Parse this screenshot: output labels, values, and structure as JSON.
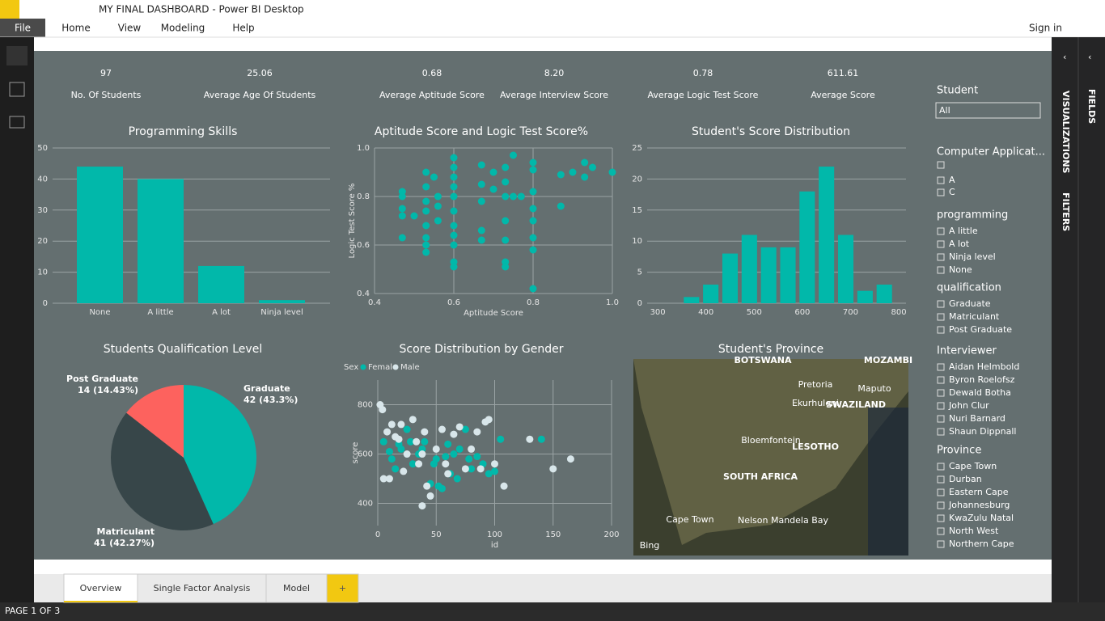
{
  "window": {
    "title": "MY FINAL DASHBOARD - Power BI Desktop",
    "menu": [
      "File",
      "Home",
      "View",
      "Modeling",
      "Help"
    ],
    "sign_in": "Sign in"
  },
  "kpis": [
    {
      "value": "97",
      "label": "No. Of Students"
    },
    {
      "value": "25.06",
      "label": "Average Age Of Students"
    },
    {
      "value": "0.68",
      "label": "Average Aptitude Score"
    },
    {
      "value": "8.20",
      "label": "Average Interview Score"
    },
    {
      "value": "0.78",
      "label": "Average Logic Test Score"
    },
    {
      "value": "611.61",
      "label": "Average Score"
    }
  ],
  "chart_data": [
    {
      "type": "bar",
      "title": "Programming Skills",
      "categories": [
        "None",
        "A little",
        "A lot",
        "Ninja level"
      ],
      "values": [
        44,
        40,
        12,
        1
      ],
      "color": "#01b8aa",
      "ylim": [
        0,
        50
      ],
      "yticks": [
        0,
        10,
        20,
        30,
        40,
        50
      ],
      "grid": true
    },
    {
      "type": "scatter",
      "title": "Aptitude Score and Logic Test Score%",
      "x_label": "Aptitude Score",
      "y_label": "Logic Test Score %",
      "color": "#01b8aa",
      "x": [
        0.47,
        0.47,
        0.47,
        0.47,
        0.47,
        0.5,
        0.53,
        0.53,
        0.53,
        0.53,
        0.53,
        0.53,
        0.53,
        0.53,
        0.55,
        0.56,
        0.56,
        0.56,
        0.6,
        0.6,
        0.6,
        0.6,
        0.6,
        0.6,
        0.6,
        0.6,
        0.6,
        0.6,
        0.6,
        0.67,
        0.67,
        0.67,
        0.67,
        0.67,
        0.7,
        0.7,
        0.73,
        0.73,
        0.73,
        0.73,
        0.73,
        0.73,
        0.73,
        0.75,
        0.75,
        0.77,
        0.8,
        0.8,
        0.8,
        0.8,
        0.8,
        0.8,
        0.8,
        0.8,
        0.87,
        0.87,
        0.9,
        0.93,
        0.93,
        0.95,
        1.0
      ],
      "y": [
        0.82,
        0.8,
        0.75,
        0.72,
        0.63,
        0.72,
        0.9,
        0.84,
        0.78,
        0.74,
        0.68,
        0.63,
        0.6,
        0.57,
        0.88,
        0.8,
        0.76,
        0.7,
        0.96,
        0.92,
        0.88,
        0.84,
        0.8,
        0.74,
        0.68,
        0.64,
        0.6,
        0.53,
        0.51,
        0.93,
        0.85,
        0.78,
        0.66,
        0.62,
        0.9,
        0.83,
        0.92,
        0.86,
        0.8,
        0.7,
        0.62,
        0.53,
        0.51,
        0.97,
        0.8,
        0.8,
        0.94,
        0.91,
        0.82,
        0.75,
        0.7,
        0.63,
        0.58,
        0.42,
        0.89,
        0.76,
        0.9,
        0.94,
        0.88,
        0.92,
        0.9
      ],
      "xlim": [
        0.4,
        1.0
      ],
      "ylim": [
        0.4,
        1.0
      ],
      "xticks": [
        0.4,
        0.6,
        0.8,
        {
          "value": 1.0,
          "label": "1.0"
        }
      ],
      "yticks": [
        0.4,
        0.6,
        0.8,
        {
          "value": 1.0,
          "label": "1.0"
        }
      ],
      "grid": true
    },
    {
      "type": "histogram",
      "title": "Student's Score Distribution",
      "color": "#01b8aa",
      "bins": [
        350,
        390,
        430,
        470,
        510,
        550,
        590,
        630,
        670,
        710,
        750,
        790
      ],
      "values": [
        1,
        3,
        8,
        11,
        9,
        9,
        18,
        22,
        11,
        2,
        3
      ],
      "xlim": [
        278,
        815
      ],
      "xticks": [
        300,
        400,
        500,
        600,
        700,
        800
      ],
      "ylim": [
        0,
        25
      ],
      "yticks": [
        0,
        5,
        10,
        15,
        20,
        25
      ],
      "grid": true
    },
    {
      "type": "pie",
      "title": "Students Qualification Level",
      "categories": [
        "Graduate",
        "Matriculant",
        "Post Graduate"
      ],
      "values": [
        42,
        41,
        14
      ],
      "value_labels": [
        "42 (43.3%)",
        "41 (42.27%)",
        "14 (14.43%)"
      ],
      "colors": [
        "#01b8aa",
        "#374649",
        "#fd625e"
      ]
    },
    {
      "type": "scatter",
      "title": "Score Distribution by Gender",
      "legend_title": "Sex",
      "x_label": "id",
      "y_label": "score",
      "series": [
        {
          "name": "Female",
          "color": "#01b8aa",
          "x": [
            5,
            10,
            12,
            15,
            18,
            20,
            25,
            28,
            30,
            35,
            38,
            40,
            45,
            48,
            50,
            52,
            55,
            58,
            60,
            62,
            65,
            68,
            70,
            75,
            78,
            80,
            85,
            90,
            95,
            100,
            105,
            140
          ],
          "y": [
            650,
            610,
            580,
            540,
            640,
            620,
            700,
            650,
            560,
            600,
            620,
            650,
            480,
            560,
            580,
            470,
            460,
            590,
            640,
            520,
            600,
            500,
            620,
            700,
            580,
            540,
            590,
            560,
            520,
            530,
            660,
            660
          ]
        },
        {
          "name": "Male",
          "color": "#d8e6ea",
          "x": [
            2,
            4,
            5,
            8,
            10,
            12,
            15,
            18,
            20,
            22,
            25,
            30,
            33,
            35,
            38,
            40,
            42,
            45,
            50,
            55,
            58,
            60,
            65,
            70,
            75,
            80,
            85,
            88,
            92,
            95,
            100,
            108,
            130,
            150,
            165,
            38
          ],
          "y": [
            800,
            780,
            500,
            690,
            500,
            720,
            670,
            660,
            720,
            530,
            600,
            740,
            650,
            560,
            600,
            690,
            470,
            430,
            620,
            700,
            560,
            520,
            680,
            710,
            540,
            620,
            690,
            540,
            730,
            740,
            560,
            470,
            660,
            540,
            580,
            390
          ]
        }
      ],
      "xlim": [
        0,
        200
      ],
      "ylim": [
        310,
        900
      ],
      "xticks": [
        0,
        50,
        100,
        150,
        200
      ],
      "yticks": [
        400,
        600,
        800
      ],
      "grid": true
    },
    {
      "type": "map",
      "title": "Student's Province",
      "labels": [
        "BOTSWANA",
        "MOZAMBI",
        "Pretoria",
        "Maputo",
        "Ekurhuleni",
        "SWAZILAND",
        "Bloemfontein",
        "LESOTHO",
        "SOUTH AFRICA",
        "Cape Town",
        "Nelson Mandela Bay",
        "Bing"
      ]
    }
  ],
  "slicers": [
    {
      "title": "Student",
      "dropdown": "All"
    },
    {
      "title": "Computer Applicat...",
      "items": [
        "A",
        "C"
      ]
    },
    {
      "title": "programming",
      "items": [
        "A little",
        "A lot",
        "Ninja level",
        "None"
      ]
    },
    {
      "title": "qualification",
      "items": [
        "Graduate",
        "Matriculant",
        "Post Graduate"
      ]
    },
    {
      "title": "Interviewer",
      "items": [
        "Aidan Helmbold",
        "Byron Roelofsz",
        "Dewald Botha",
        "John Clur",
        "Nuri Barnard",
        "Shaun Dippnall"
      ]
    },
    {
      "title": "Province",
      "items": [
        "Cape Town",
        "Durban",
        "Eastern Cape",
        "Johannesburg",
        "KwaZulu Natal",
        "North West",
        "Northern Cape"
      ]
    }
  ],
  "panes": [
    "VISUALIZATIONS",
    "FILTERS",
    "FIELDS"
  ],
  "tabs": [
    "Overview",
    "Single Factor Analysis",
    "Model",
    "+"
  ],
  "status": "PAGE 1 OF 3"
}
